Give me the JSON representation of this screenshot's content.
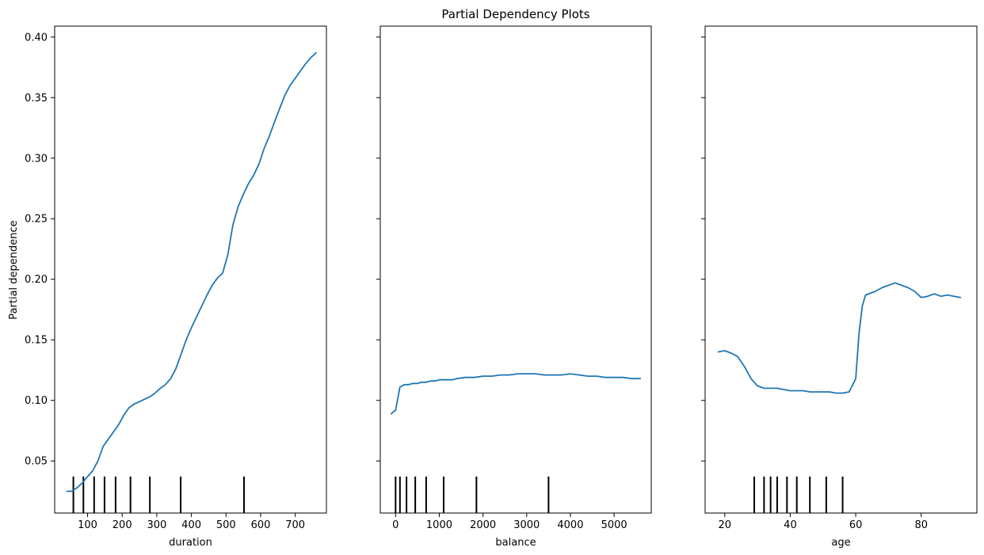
{
  "chart_data": {
    "type": "line",
    "title": "Partial Dependency Plots",
    "ylabel": "Partial dependence",
    "ylim": [
      0.007,
      0.409
    ],
    "yticks": [
      0.05,
      0.1,
      0.15,
      0.2,
      0.25,
      0.3,
      0.35,
      0.4
    ],
    "ytick_labels": [
      "0.05",
      "0.10",
      "0.15",
      "0.20",
      "0.25",
      "0.30",
      "0.35",
      "0.40"
    ],
    "line_color": "#1f77b4",
    "grid": false,
    "panels": [
      {
        "xlabel": "duration",
        "xlim": [
          5,
          790
        ],
        "xticks": [
          100,
          200,
          300,
          400,
          500,
          600,
          700
        ],
        "xtick_labels": [
          "100",
          "200",
          "300",
          "400",
          "500",
          "600",
          "700"
        ],
        "deciles": [
          59,
          88,
          119,
          149,
          181,
          224,
          280,
          369,
          552
        ],
        "x": [
          40,
          55,
          70,
          85,
          100,
          115,
          130,
          145,
          160,
          175,
          190,
          205,
          220,
          235,
          250,
          265,
          280,
          295,
          310,
          325,
          340,
          355,
          370,
          385,
          400,
          415,
          430,
          445,
          460,
          475,
          490,
          505,
          520,
          535,
          550,
          565,
          580,
          595,
          610,
          625,
          640,
          655,
          670,
          685,
          700,
          715,
          730,
          745,
          760
        ],
        "y": [
          0.025,
          0.025,
          0.028,
          0.032,
          0.037,
          0.042,
          0.05,
          0.062,
          0.068,
          0.074,
          0.08,
          0.088,
          0.094,
          0.097,
          0.099,
          0.101,
          0.103,
          0.106,
          0.11,
          0.113,
          0.118,
          0.126,
          0.138,
          0.15,
          0.16,
          0.169,
          0.178,
          0.187,
          0.195,
          0.201,
          0.205,
          0.22,
          0.245,
          0.26,
          0.27,
          0.279,
          0.286,
          0.295,
          0.308,
          0.318,
          0.33,
          0.341,
          0.352,
          0.36,
          0.366,
          0.372,
          0.378,
          0.383,
          0.387
        ]
      },
      {
        "xlabel": "balance",
        "xlim": [
          -350,
          5850
        ],
        "xticks": [
          0,
          1000,
          2000,
          3000,
          4000,
          5000
        ],
        "xtick_labels": [
          "0",
          "1000",
          "2000",
          "3000",
          "4000",
          "5000"
        ],
        "deciles": [
          0,
          100,
          250,
          450,
          700,
          1100,
          1850,
          3500
        ],
        "x": [
          -100,
          0,
          100,
          200,
          300,
          400,
          500,
          600,
          700,
          800,
          900,
          1000,
          1100,
          1200,
          1300,
          1400,
          1600,
          1800,
          2000,
          2200,
          2400,
          2600,
          2800,
          3000,
          3200,
          3400,
          3600,
          3800,
          4000,
          4200,
          4400,
          4600,
          4800,
          5000,
          5200,
          5400,
          5600
        ],
        "y": [
          0.089,
          0.092,
          0.111,
          0.113,
          0.113,
          0.114,
          0.114,
          0.115,
          0.115,
          0.116,
          0.116,
          0.117,
          0.117,
          0.117,
          0.117,
          0.118,
          0.119,
          0.119,
          0.12,
          0.12,
          0.121,
          0.121,
          0.122,
          0.122,
          0.122,
          0.121,
          0.121,
          0.121,
          0.122,
          0.121,
          0.12,
          0.12,
          0.119,
          0.119,
          0.119,
          0.118,
          0.118
        ]
      },
      {
        "xlabel": "age",
        "xlim": [
          14,
          97
        ],
        "xticks": [
          20,
          40,
          60,
          80
        ],
        "xtick_labels": [
          "20",
          "40",
          "60",
          "80"
        ],
        "deciles": [
          29,
          32,
          34,
          36,
          39,
          42,
          46,
          51,
          56
        ],
        "x": [
          18,
          20,
          22,
          24,
          26,
          28,
          30,
          32,
          34,
          36,
          38,
          40,
          42,
          44,
          46,
          48,
          50,
          52,
          54,
          56,
          58,
          60,
          61,
          62,
          63,
          64,
          66,
          68,
          70,
          72,
          74,
          76,
          78,
          80,
          82,
          84,
          86,
          88,
          90,
          92
        ],
        "y": [
          0.14,
          0.141,
          0.139,
          0.136,
          0.128,
          0.118,
          0.112,
          0.11,
          0.11,
          0.11,
          0.109,
          0.108,
          0.108,
          0.108,
          0.107,
          0.107,
          0.107,
          0.107,
          0.106,
          0.106,
          0.107,
          0.118,
          0.155,
          0.178,
          0.187,
          0.188,
          0.19,
          0.193,
          0.195,
          0.197,
          0.195,
          0.193,
          0.19,
          0.185,
          0.186,
          0.188,
          0.186,
          0.187,
          0.186,
          0.185
        ]
      }
    ]
  }
}
